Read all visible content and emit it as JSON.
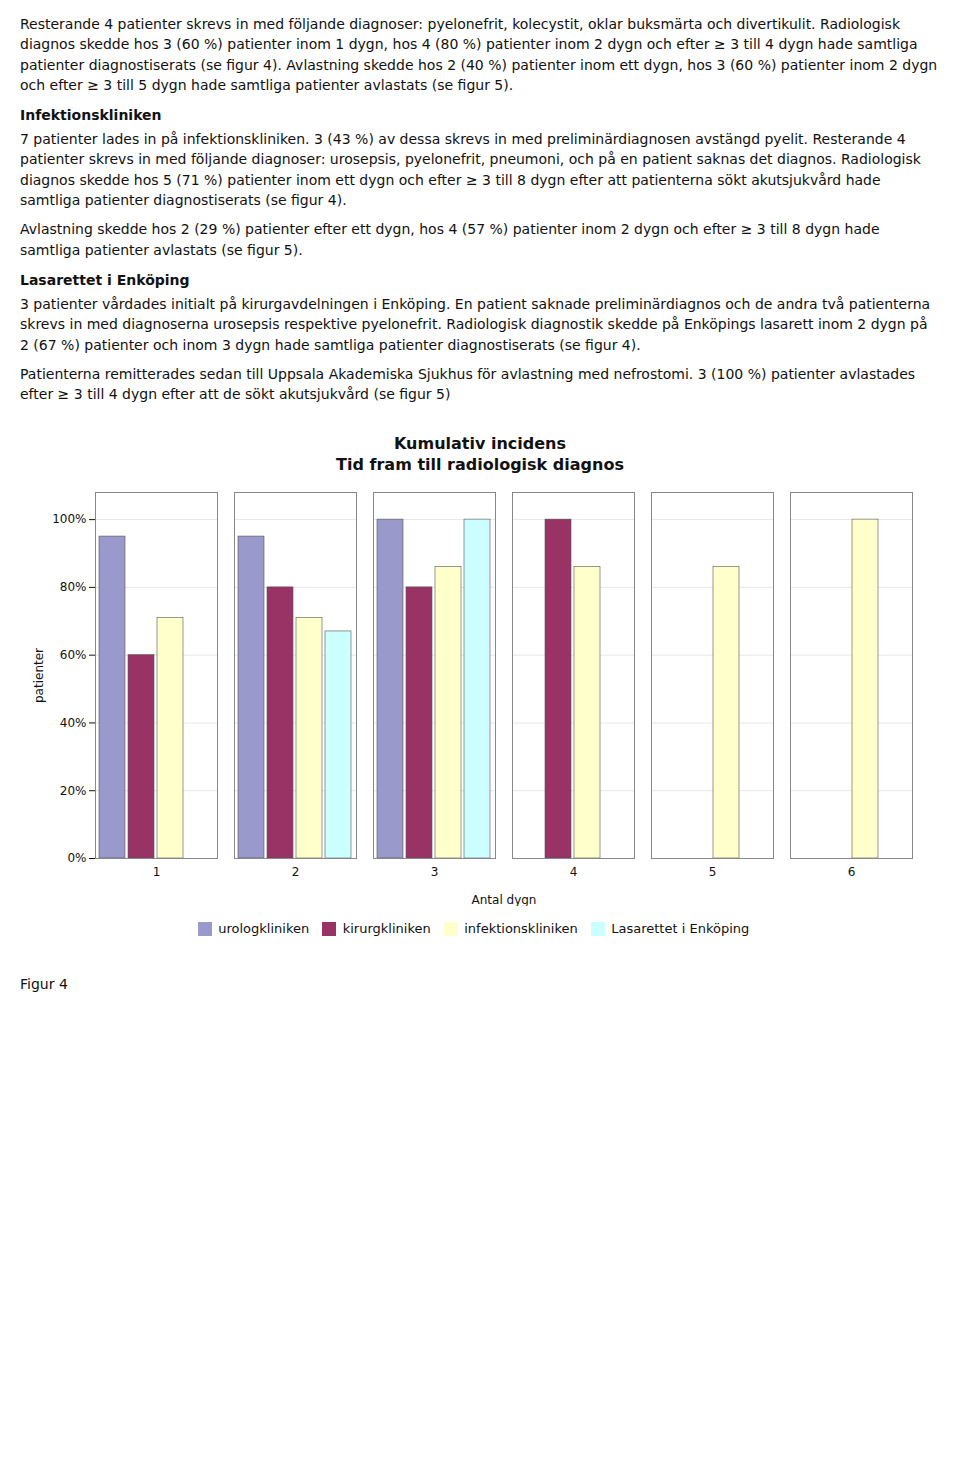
{
  "paragraphs": [
    {
      "text": "Resterande 4 patienter skrevs in med följande diagnoser: pyelonefrit, kolecystit, oklar buksmärta och divertikulit. Radiologisk diagnos skedde hos 3 (60 %) patienter inom 1 dygn, hos 4 (80 %) patienter inom 2 dygn och efter ≥ 3 till 4 dygn hade samtliga patienter diagnostiserats (se figur 4). Avlastning skedde hos 2 (40 %) patienter inom ett dygn, hos 3 (60 %) patienter inom 2 dygn och efter ≥ 3 till 5 dygn hade samtliga patienter avlastats (se figur 5).",
      "heading": false
    },
    {
      "text": "Infektionskliniken",
      "heading": true
    },
    {
      "text": "7 patienter lades in på infektionskliniken. 3 (43 %) av dessa skrevs in med preliminärdiagnosen avstängd pyelit. Resterande 4 patienter skrevs in med följande diagnoser: urosepsis, pyelonefrit, pneumoni, och på en patient saknas det diagnos. Radiologisk diagnos skedde hos 5 (71 %) patienter inom ett dygn och efter ≥ 3 till 8 dygn efter att patienterna sökt akutsjukvård hade samtliga patienter diagnostiserats (se figur 4).",
      "heading": false
    },
    {
      "text": "Avlastning skedde hos 2 (29 %) patienter efter ett dygn, hos 4 (57 %) patienter inom 2 dygn och efter ≥ 3 till 8 dygn hade samtliga patienter avlastats (se figur 5).",
      "heading": false
    },
    {
      "text": "Lasarettet i Enköping",
      "heading": true
    },
    {
      "text": "3 patienter vårdades initialt på kirurgavdelningen i Enköping. En patient saknade preliminärdiagnos och de andra två patienterna skrevs in med diagnoserna urosepsis respektive pyelonefrit. Radiologisk diagnostik skedde på Enköpings lasarett inom 2 dygn på 2 (67 %) patienter och inom 3 dygn hade samtliga patienter diagnostiserats (se figur 4).",
      "heading": false
    },
    {
      "text": "Patienterna remitterades sedan till Uppsala Akademiska Sjukhus för avlastning med nefrostomi. 3 (100 %) patienter avlastades efter ≥ 3 till 4 dygn efter att de sökt akutsjukvård (se figur 5)",
      "heading": false
    }
  ],
  "chart_data": {
    "type": "bar",
    "title": "Kumulativ incidens",
    "subtitle": "Tid fram till radiologisk diagnos",
    "xlabel": "Antal dygn",
    "ylabel": "patienter",
    "caption": "Figur 4",
    "categories": [
      1,
      2,
      3,
      4,
      5,
      6
    ],
    "series": [
      {
        "name": "urologkliniken",
        "color": "#9999CC",
        "values": [
          95,
          95,
          100,
          0,
          0,
          0
        ]
      },
      {
        "name": "kirurgkliniken",
        "color": "#993366",
        "values": [
          60,
          80,
          80,
          100,
          0,
          0
        ]
      },
      {
        "name": "infektionskliniken",
        "color": "#FFFFCC",
        "values": [
          71,
          71,
          86,
          86,
          86,
          100
        ]
      },
      {
        "name": "Lasarettet i Enköping",
        "color": "#CCFFFF",
        "values": [
          0,
          67,
          100,
          0,
          0,
          0
        ]
      }
    ],
    "ylim": [
      0,
      108
    ],
    "yticks": [
      {
        "value": 0,
        "label": "0%"
      },
      {
        "value": 20,
        "label": "20%"
      },
      {
        "value": 40,
        "label": "40%"
      },
      {
        "value": 60,
        "label": "60%"
      },
      {
        "value": 80,
        "label": "80%"
      },
      {
        "value": 100,
        "label": "100%"
      }
    ],
    "grid": true,
    "legend": "bottom"
  }
}
